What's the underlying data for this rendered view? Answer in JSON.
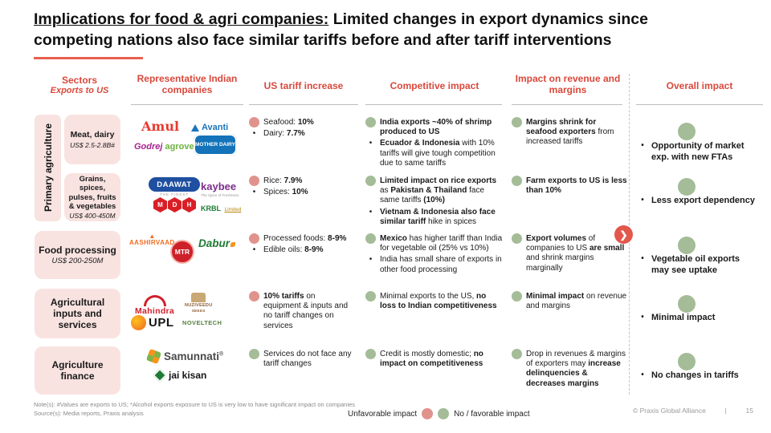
{
  "title": {
    "underlined": "Implications for food & agri companies:",
    "rest_line1": " Limited changes in export dynamics since",
    "line2": "competing nations also face similar tariffs before and after tariff interventions"
  },
  "colors": {
    "header_red": "#D9483B",
    "sector_box_pink": "#F8E3E0",
    "unfavorable_dot": "#E0938D",
    "favorable_dot": "#A4BC97",
    "accent_bar": "#E8604C"
  },
  "headers": {
    "sectors": "Sectors",
    "sectors_sub": "Exports to US",
    "companies": "Representative Indian companies",
    "tariff": "US tariff increase",
    "competitive": "Competitive impact",
    "revenue": "Impact on revenue and margins",
    "overall": "Overall impact"
  },
  "group_label": "Primary agriculture",
  "rows": [
    {
      "sector": {
        "name": "Meat, dairy",
        "value": "US$ 2.5-2.8B#"
      },
      "tariff": {
        "dot": "pink",
        "items": [
          {
            "segs": [
              {
                "t": "Seafood: "
              },
              {
                "t": "10%",
                "b": true
              }
            ]
          },
          {
            "segs": [
              {
                "t": "Dairy: "
              },
              {
                "t": "7.7%",
                "b": true
              }
            ]
          }
        ]
      },
      "competitive": {
        "dot": "green",
        "items": [
          {
            "segs": [
              {
                "t": "India exports ~40% of shrimp produced to US",
                "b": true
              }
            ]
          },
          {
            "segs": [
              {
                "t": "Ecuador & Indonesia",
                "b": true
              },
              {
                "t": " with 10% tariffs will give tough competition due to same tariffs"
              }
            ]
          }
        ]
      },
      "revenue": {
        "dot": "green",
        "items": [
          {
            "segs": [
              {
                "t": "Margins shrink for seafood exporters",
                "b": true
              },
              {
                "t": " from increased tariffs"
              }
            ]
          }
        ]
      },
      "overall": "Opportunity of market exp. with new FTAs"
    },
    {
      "sector": {
        "name": "Grains, spices, pulses, fruits & vegetables",
        "value": "US$ 400-450M"
      },
      "tariff": {
        "dot": "pink",
        "items": [
          {
            "segs": [
              {
                "t": "Rice: "
              },
              {
                "t": "7.9%",
                "b": true
              }
            ]
          },
          {
            "segs": [
              {
                "t": "Spices: "
              },
              {
                "t": "10%",
                "b": true
              }
            ]
          }
        ]
      },
      "competitive": {
        "dot": "green",
        "items": [
          {
            "segs": [
              {
                "t": "Limited impact on rice exports",
                "b": true
              },
              {
                "t": " as "
              },
              {
                "t": "Pakistan & Thailand",
                "b": true
              },
              {
                "t": " face same tariffs "
              },
              {
                "t": "(10%)",
                "b": true
              }
            ]
          },
          {
            "segs": [
              {
                "t": "Vietnam & Indonesia also face similar tariff",
                "b": true
              },
              {
                "t": " hike in spices"
              }
            ]
          }
        ]
      },
      "revenue": {
        "dot": "green",
        "items": [
          {
            "segs": [
              {
                "t": "Farm exports to US is less than 10%",
                "b": true
              }
            ]
          }
        ]
      },
      "overall": "Less export dependency"
    },
    {
      "sector": {
        "name": "Food processing",
        "value": "US$ 200-250M"
      },
      "tariff": {
        "dot": "pink",
        "items": [
          {
            "segs": [
              {
                "t": "Processed foods: "
              },
              {
                "t": "8-9%",
                "b": true
              }
            ]
          },
          {
            "segs": [
              {
                "t": "Edible oils: "
              },
              {
                "t": "8-9%",
                "b": true
              }
            ]
          }
        ]
      },
      "competitive": {
        "dot": "green",
        "items": [
          {
            "segs": [
              {
                "t": "Mexico",
                "b": true
              },
              {
                "t": " has higher tariff than India for vegetable oil (25% vs 10%)"
              }
            ]
          },
          {
            "segs": [
              {
                "t": "India has small share of exports in other food processing"
              }
            ]
          }
        ]
      },
      "revenue": {
        "dot": "green",
        "items": [
          {
            "segs": [
              {
                "t": "Export volumes",
                "b": true
              },
              {
                "t": " of companies to US "
              },
              {
                "t": "are small",
                "b": true
              },
              {
                "t": " and shrink margins marginally"
              }
            ]
          }
        ]
      },
      "overall": "Vegetable oil exports may see uptake"
    },
    {
      "sector": {
        "name": "Agricultural inputs and services",
        "value": ""
      },
      "tariff": {
        "dot": "pink",
        "items": [
          {
            "segs": [
              {
                "t": "10% tariffs",
                "b": true
              },
              {
                "t": " on equipment & inputs and no tariff changes on services"
              }
            ]
          }
        ]
      },
      "competitive": {
        "dot": "green",
        "items": [
          {
            "segs": [
              {
                "t": "Minimal exports to the US, "
              },
              {
                "t": "no loss to Indian competitiveness",
                "b": true
              }
            ]
          }
        ]
      },
      "revenue": {
        "dot": "green",
        "items": [
          {
            "segs": [
              {
                "t": "Minimal impact",
                "b": true
              },
              {
                "t": " on revenue and margins"
              }
            ]
          }
        ]
      },
      "overall": "Minimal impact"
    },
    {
      "sector": {
        "name": "Agriculture finance",
        "value": ""
      },
      "tariff": {
        "dot": "green",
        "items": [
          {
            "segs": [
              {
                "t": "Services do not face any tariff changes"
              }
            ]
          }
        ]
      },
      "competitive": {
        "dot": "green",
        "items": [
          {
            "segs": [
              {
                "t": "Credit is mostly domestic; "
              },
              {
                "t": "no impact on competitiveness",
                "b": true
              }
            ]
          }
        ]
      },
      "revenue": {
        "dot": "green",
        "items": [
          {
            "segs": [
              {
                "t": "Drop in revenues & margins of exporters may "
              },
              {
                "t": "increase delinquencies & decreases margins",
                "b": true
              }
            ]
          }
        ]
      },
      "overall": "No changes in tariffs"
    }
  ],
  "logos": {
    "amul": "Amul",
    "avanti": "Avanti",
    "godrej": "Godrej",
    "agrovet": "agrovet",
    "mother_dairy": "MOTHER DAIRY",
    "daawat": "DAAWAT",
    "daawat_sub": "THE FINEST",
    "kaybee": "kaybee",
    "kaybee_sub": "The Spice of Freshness",
    "mdh_m": "M",
    "mdh_d": "D",
    "mdh_h": "H",
    "krbl": "KRBL",
    "krbl_sub": "Limited",
    "aashirvaad": "AASHIRVAAD",
    "mtr": "MTR",
    "dabur": "Dabur",
    "mahindra": "Mahindra",
    "nuziveedu": "NUZIVEEDU",
    "nuziveedu_sub": "SEEDS",
    "upl": "UPL",
    "noveltech": "NOVELTECH",
    "samunnati": "Samunnati",
    "samunnati_reg": "®",
    "jaikisan": "jai kisan"
  },
  "chevron": "❯",
  "footer": {
    "note": "Note(s): #Values are exports to US; *Alcohol exports exposure to US is very low to have significant impact on companies",
    "source": "Source(s): Media reports, Praxis analysis",
    "legend_unfavorable": "Unfavorable impact",
    "legend_favorable": "No / favorable impact",
    "copyright": "© Praxis Global Alliance",
    "separator": "|",
    "page_number": "15"
  }
}
